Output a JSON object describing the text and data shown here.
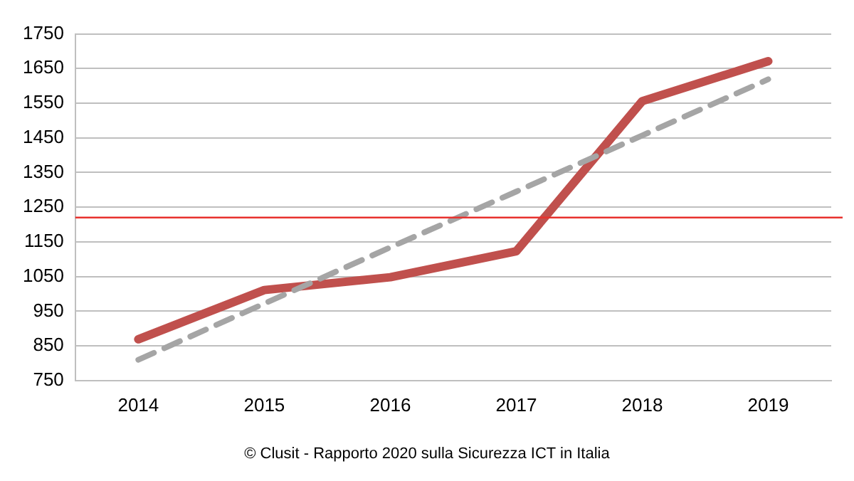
{
  "chart_data": {
    "type": "line",
    "categories": [
      "2014",
      "2015",
      "2016",
      "2017",
      "2018",
      "2019"
    ],
    "series": [
      {
        "color": "#c0504d",
        "values": [
          869,
          1011,
          1048,
          1123,
          1556,
          1671
        ]
      },
      {
        "type": "line",
        "color": "#a5a5a5",
        "line_style": "dashed",
        "values": [
          810,
          972,
          1134,
          1295,
          1457,
          1619
        ]
      }
    ],
    "ylim": [
      750,
      1750
    ],
    "yticks": [
      750,
      850,
      950,
      1050,
      1150,
      1250,
      1350,
      1450,
      1550,
      1650,
      1750
    ],
    "grid": "y",
    "legend": false,
    "marker": "none",
    "line_style": "solid",
    "ref_lines": [
      {
        "axis": "y",
        "value": 1220,
        "color": "#e8322e"
      }
    ],
    "annotations": [
      "© Clusit - Rapporto 2020 sulla Sicurezza ICT in Italia"
    ]
  }
}
